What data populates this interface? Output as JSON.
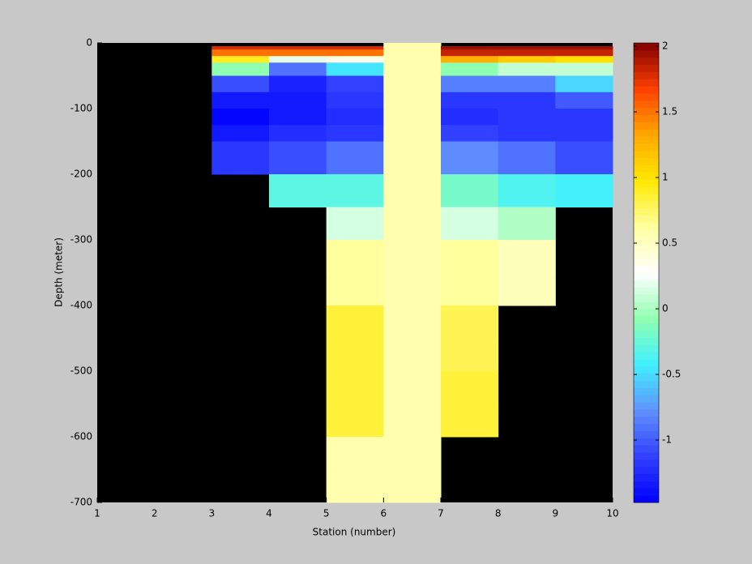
{
  "chart_data": {
    "type": "heatmap",
    "xlabel": "Station (number)",
    "ylabel": "Depth (meter)",
    "x": [
      1,
      2,
      3,
      4,
      5,
      6,
      7,
      8,
      9,
      10
    ],
    "y": [
      0,
      -5,
      -10,
      -20,
      -30,
      -50,
      -75,
      -100,
      -125,
      -150,
      -200,
      -250,
      -300,
      -350,
      -400,
      -450,
      -500,
      -550,
      -600,
      -650,
      -700
    ],
    "z": [
      [
        null,
        null,
        null,
        null,
        null,
        0.55,
        null,
        null,
        null
      ],
      [
        null,
        null,
        1.8,
        1.8,
        1.8,
        0.55,
        1.95,
        1.95,
        1.95
      ],
      [
        null,
        null,
        1.5,
        1.5,
        1.5,
        0.55,
        1.85,
        1.85,
        1.85
      ],
      [
        null,
        null,
        0.9,
        0.2,
        0.35,
        0.55,
        1.3,
        1.1,
        1.0
      ],
      [
        null,
        null,
        -0.1,
        -0.9,
        -0.45,
        0.55,
        -0.1,
        0.1,
        0.1
      ],
      [
        null,
        null,
        -1.05,
        -1.3,
        -1.1,
        0.55,
        -0.85,
        -0.85,
        -0.5
      ],
      [
        null,
        null,
        -1.35,
        -1.35,
        -1.2,
        0.55,
        -1.2,
        -1.2,
        -1.0
      ],
      [
        null,
        null,
        -1.45,
        -1.35,
        -1.25,
        0.55,
        -1.25,
        -1.2,
        -1.2
      ],
      [
        null,
        null,
        -1.35,
        -1.25,
        -1.2,
        0.55,
        -1.1,
        -1.15,
        -1.2
      ],
      [
        null,
        null,
        -1.2,
        -1.05,
        -0.9,
        0.55,
        -0.8,
        -0.9,
        -1.05
      ],
      [
        null,
        null,
        null,
        -0.3,
        -0.3,
        0.55,
        -0.2,
        -0.35,
        -0.4
      ],
      [
        null,
        null,
        null,
        null,
        0.15,
        0.55,
        0.15,
        0.05,
        null
      ],
      [
        null,
        null,
        null,
        null,
        0.65,
        0.55,
        0.65,
        0.5,
        null
      ],
      [
        null,
        null,
        null,
        null,
        0.65,
        0.55,
        0.65,
        0.5,
        null
      ],
      [
        null,
        null,
        null,
        null,
        0.85,
        0.55,
        0.8,
        null,
        null
      ],
      [
        null,
        null,
        null,
        null,
        0.85,
        0.55,
        0.8,
        null,
        null
      ],
      [
        null,
        null,
        null,
        null,
        0.85,
        0.55,
        0.85,
        null,
        null
      ],
      [
        null,
        null,
        null,
        null,
        0.85,
        0.55,
        0.85,
        null,
        null
      ],
      [
        null,
        null,
        null,
        null,
        0.6,
        0.55,
        null,
        null,
        null
      ],
      [
        null,
        null,
        null,
        null,
        0.6,
        0.55,
        null,
        null,
        null
      ]
    ],
    "xlim": [
      1,
      10
    ],
    "xticks": [
      1,
      2,
      3,
      4,
      5,
      6,
      7,
      8,
      9,
      10
    ],
    "ylim": [
      -700,
      0
    ],
    "yticks": [
      0,
      -100,
      -200,
      -300,
      -400,
      -500,
      -600,
      -700
    ],
    "clim": [
      -1.475,
      2.025
    ],
    "cticks": [
      -1,
      -0.5,
      0,
      0.5,
      1,
      1.5,
      2
    ],
    "colormap": [
      "#0000ff",
      "#3040ff",
      "#6090ff",
      "#40f0ff",
      "#90ffb0",
      "#ffffff",
      "#ffffa0",
      "#ffe800",
      "#ffa800",
      "#ff4000",
      "#800000"
    ],
    "colormap_levels": 64,
    "axes_color": "#000000"
  }
}
